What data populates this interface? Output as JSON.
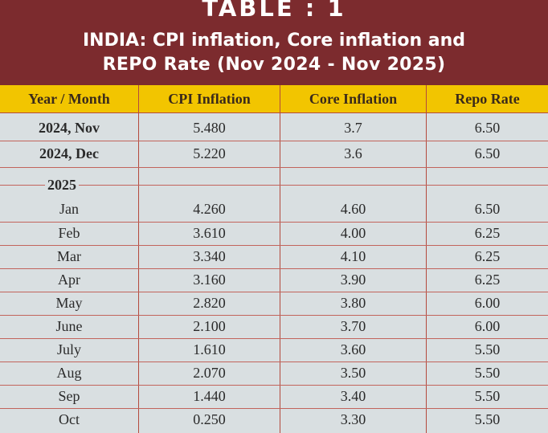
{
  "header": {
    "table_number": "TABLE  : 1",
    "title_line1": "INDIA: CPI inflation, Core inflation and",
    "title_line2": "REPO Rate (Nov 2024 - Nov 2025)"
  },
  "columns": [
    "Year / Month",
    "CPI Inflation",
    "Core Inflation",
    "Repo Rate"
  ],
  "rows_2024": [
    {
      "label": "2024, Nov",
      "cpi": "5.480",
      "core": "3.7",
      "repo": "6.50"
    },
    {
      "label": "2024, Dec",
      "cpi": "5.220",
      "core": "3.6",
      "repo": "6.50"
    }
  ],
  "year_label": "2025",
  "rows_2025": [
    {
      "label": "Jan",
      "cpi": "4.260",
      "core": "4.60",
      "repo": "6.50"
    },
    {
      "label": "Feb",
      "cpi": "3.610",
      "core": "4.00",
      "repo": "6.25"
    },
    {
      "label": "Mar",
      "cpi": "3.340",
      "core": "4.10",
      "repo": "6.25"
    },
    {
      "label": "Apr",
      "cpi": "3.160",
      "core": "3.90",
      "repo": "6.25"
    },
    {
      "label": "May",
      "cpi": "2.820",
      "core": "3.80",
      "repo": "6.00"
    },
    {
      "label": "June",
      "cpi": "2.100",
      "core": "3.70",
      "repo": "6.00"
    },
    {
      "label": "July",
      "cpi": "1.610",
      "core": "3.60",
      "repo": "5.50"
    },
    {
      "label": "Aug",
      "cpi": "2.070",
      "core": "3.50",
      "repo": "5.50"
    },
    {
      "label": "Sep",
      "cpi": "1.440",
      "core": "3.40",
      "repo": "5.50"
    },
    {
      "label": "Oct",
      "cpi": "0.250",
      "core": "3.30",
      "repo": "5.50"
    }
  ],
  "colors": {
    "header_bg": "#7c2b2e",
    "column_header_bg": "#f2c500",
    "body_bg": "#d9dfe1",
    "rule": "#b44a3d"
  }
}
